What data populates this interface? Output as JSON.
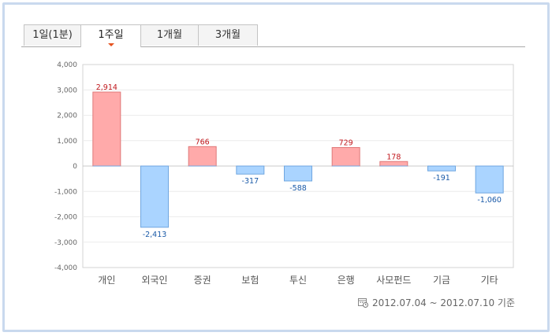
{
  "tabs": [
    {
      "label": "1일(1분)",
      "active": false
    },
    {
      "label": "1주일",
      "active": true
    },
    {
      "label": "1개월",
      "active": false
    },
    {
      "label": "3개월",
      "active": false
    }
  ],
  "footer": {
    "icon": "calendar-clock-icon",
    "period_label": "2012.07.04 ~ 2012.07.10 기준"
  },
  "colors": {
    "positive_fill": "#ffaaaa",
    "positive_stroke": "#e07878",
    "positive_label": "#c0161b",
    "negative_fill": "#aad4ff",
    "negative_stroke": "#6fa6e0",
    "negative_label": "#1a5aa8",
    "frame_border": "#c9d9ee",
    "tab_marker": "#e5531f"
  },
  "chart_data": {
    "type": "bar",
    "categories": [
      "개인",
      "외국인",
      "증권",
      "보험",
      "투신",
      "은행",
      "사모펀드",
      "기금",
      "기타"
    ],
    "values": [
      2914,
      -2413,
      766,
      -317,
      -588,
      729,
      178,
      -191,
      -1060
    ],
    "value_labels": [
      "2,914",
      "-2,413",
      "766",
      "-317",
      "-588",
      "729",
      "178",
      "-191",
      "-1,060"
    ],
    "yticks": [
      4000,
      3000,
      2000,
      1000,
      0,
      -1000,
      -2000,
      -3000,
      -4000
    ],
    "ytick_labels": [
      "4,000",
      "3,000",
      "2,000",
      "1,000",
      "0",
      "-1,000",
      "-2,000",
      "-3,000",
      "-4,000"
    ],
    "ylim": [
      -4000,
      4000
    ],
    "title": "",
    "xlabel": "",
    "ylabel": "",
    "grid": true,
    "legend": "none"
  }
}
